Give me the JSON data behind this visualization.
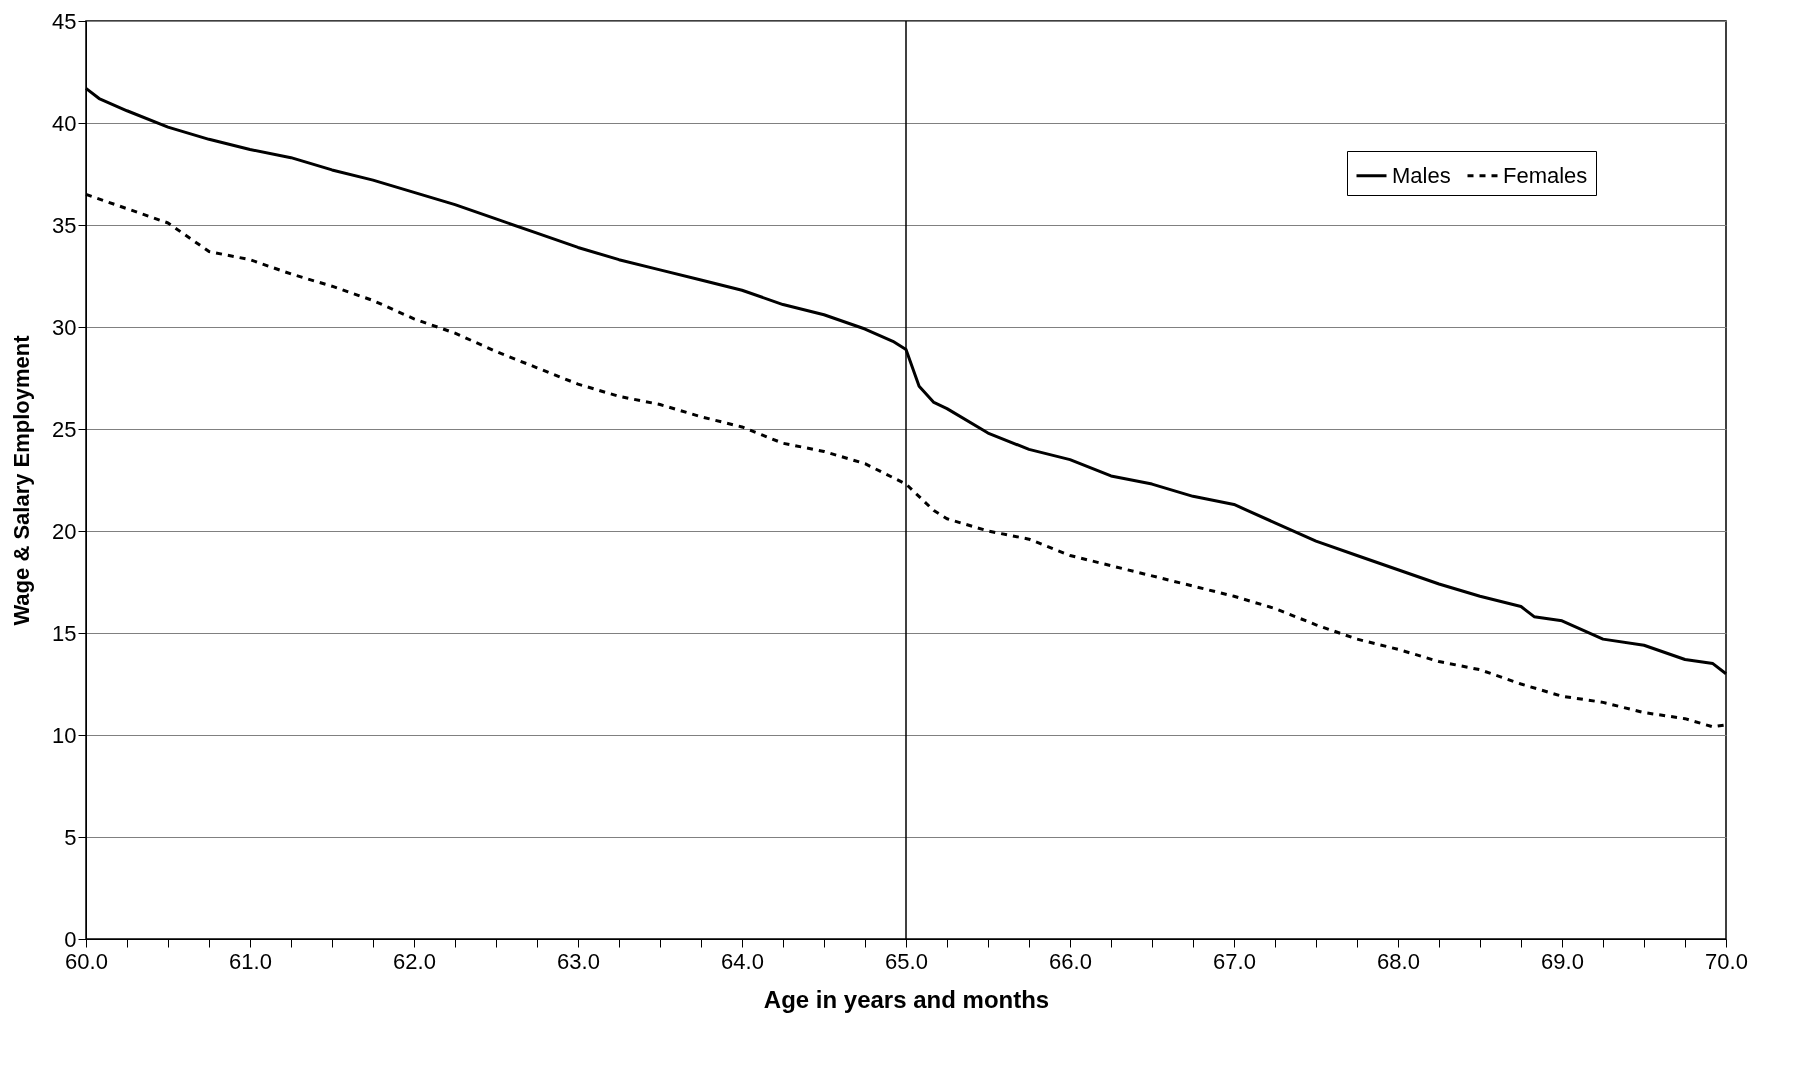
{
  "chart_data": {
    "type": "line",
    "xlabel": "Age in years and months",
    "ylabel": "Wage & Salary Employment",
    "xlim": [
      60,
      70
    ],
    "ylim": [
      0,
      45
    ],
    "xticks": [
      {
        "value": 60,
        "label": "60.0"
      },
      {
        "value": 60.25,
        "label": null
      },
      {
        "value": 60.5,
        "label": null
      },
      {
        "value": 60.75,
        "label": null
      },
      {
        "value": 61,
        "label": "61.0"
      },
      {
        "value": 61.25,
        "label": null
      },
      {
        "value": 61.5,
        "label": null
      },
      {
        "value": 61.75,
        "label": null
      },
      {
        "value": 62,
        "label": "62.0"
      },
      {
        "value": 62.25,
        "label": null
      },
      {
        "value": 62.5,
        "label": null
      },
      {
        "value": 62.75,
        "label": null
      },
      {
        "value": 63,
        "label": "63.0"
      },
      {
        "value": 63.25,
        "label": null
      },
      {
        "value": 63.5,
        "label": null
      },
      {
        "value": 63.75,
        "label": null
      },
      {
        "value": 64,
        "label": "64.0"
      },
      {
        "value": 64.25,
        "label": null
      },
      {
        "value": 64.5,
        "label": null
      },
      {
        "value": 64.75,
        "label": null
      },
      {
        "value": 65,
        "label": "65.0"
      },
      {
        "value": 65.25,
        "label": null
      },
      {
        "value": 65.5,
        "label": null
      },
      {
        "value": 65.75,
        "label": null
      },
      {
        "value": 66,
        "label": "66.0"
      },
      {
        "value": 66.25,
        "label": null
      },
      {
        "value": 66.5,
        "label": null
      },
      {
        "value": 66.75,
        "label": null
      },
      {
        "value": 67,
        "label": "67.0"
      },
      {
        "value": 67.25,
        "label": null
      },
      {
        "value": 67.5,
        "label": null
      },
      {
        "value": 67.75,
        "label": null
      },
      {
        "value": 68,
        "label": "68.0"
      },
      {
        "value": 68.25,
        "label": null
      },
      {
        "value": 68.5,
        "label": null
      },
      {
        "value": 68.75,
        "label": null
      },
      {
        "value": 69,
        "label": "69.0"
      },
      {
        "value": 69.25,
        "label": null
      },
      {
        "value": 69.5,
        "label": null
      },
      {
        "value": 69.75,
        "label": null
      },
      {
        "value": 70,
        "label": "70.0"
      }
    ],
    "yticks": [
      0,
      5,
      10,
      15,
      20,
      25,
      30,
      35,
      40,
      45
    ],
    "grid": "y",
    "legend": "top right",
    "ref_lines": [
      {
        "axis": "x",
        "value": 65,
        "color": "#000000"
      }
    ],
    "series": [
      {
        "name": "Males",
        "color": "#000000",
        "line_style": "solid",
        "x": [
          60,
          60.08,
          60.25,
          60.5,
          60.75,
          61,
          61.25,
          61.5,
          61.75,
          62,
          62.25,
          62.5,
          62.75,
          63,
          63.25,
          63.5,
          63.75,
          64,
          64.25,
          64.5,
          64.75,
          64.92,
          65,
          65.08,
          65.17,
          65.25,
          65.5,
          65.75,
          66,
          66.25,
          66.5,
          66.75,
          67,
          67.25,
          67.5,
          67.75,
          68,
          68.25,
          68.5,
          68.75,
          68.83,
          69,
          69.25,
          69.5,
          69.75,
          69.92,
          70
        ],
        "values": [
          41.7,
          41.2,
          40.6,
          39.8,
          39.2,
          38.7,
          38.3,
          37.7,
          37.2,
          36.6,
          36,
          35.3,
          34.6,
          33.9,
          33.3,
          32.8,
          32.3,
          31.8,
          31.1,
          30.6,
          29.9,
          29.3,
          28.9,
          27.1,
          26.3,
          26,
          24.8,
          24,
          23.5,
          22.7,
          22.3,
          21.7,
          21.3,
          20.4,
          19.5,
          18.8,
          18.1,
          17.4,
          16.8,
          16.3,
          15.8,
          15.6,
          14.7,
          14.4,
          13.7,
          13.5,
          13
        ]
      },
      {
        "name": "Females",
        "color": "#000000",
        "line_style": "dashed",
        "x": [
          60,
          60.25,
          60.5,
          60.75,
          61,
          61.25,
          61.5,
          61.75,
          62,
          62.25,
          62.5,
          62.75,
          63,
          63.25,
          63.5,
          63.75,
          64,
          64.25,
          64.5,
          64.75,
          65,
          65.17,
          65.25,
          65.5,
          65.75,
          66,
          66.25,
          66.5,
          66.75,
          67,
          67.25,
          67.5,
          67.75,
          68,
          68.25,
          68.5,
          68.75,
          69,
          69.25,
          69.5,
          69.75,
          69.92,
          70
        ],
        "values": [
          36.5,
          35.8,
          35.1,
          33.7,
          33.3,
          32.6,
          32,
          31.3,
          30.4,
          29.7,
          28.8,
          28,
          27.2,
          26.6,
          26.2,
          25.6,
          25.1,
          24.3,
          23.9,
          23.3,
          22.3,
          21,
          20.6,
          20,
          19.6,
          18.8,
          18.3,
          17.8,
          17.3,
          16.8,
          16.2,
          15.4,
          14.7,
          14.2,
          13.6,
          13.2,
          12.5,
          11.9,
          11.6,
          11.1,
          10.8,
          10.4,
          10.5
        ]
      }
    ]
  }
}
